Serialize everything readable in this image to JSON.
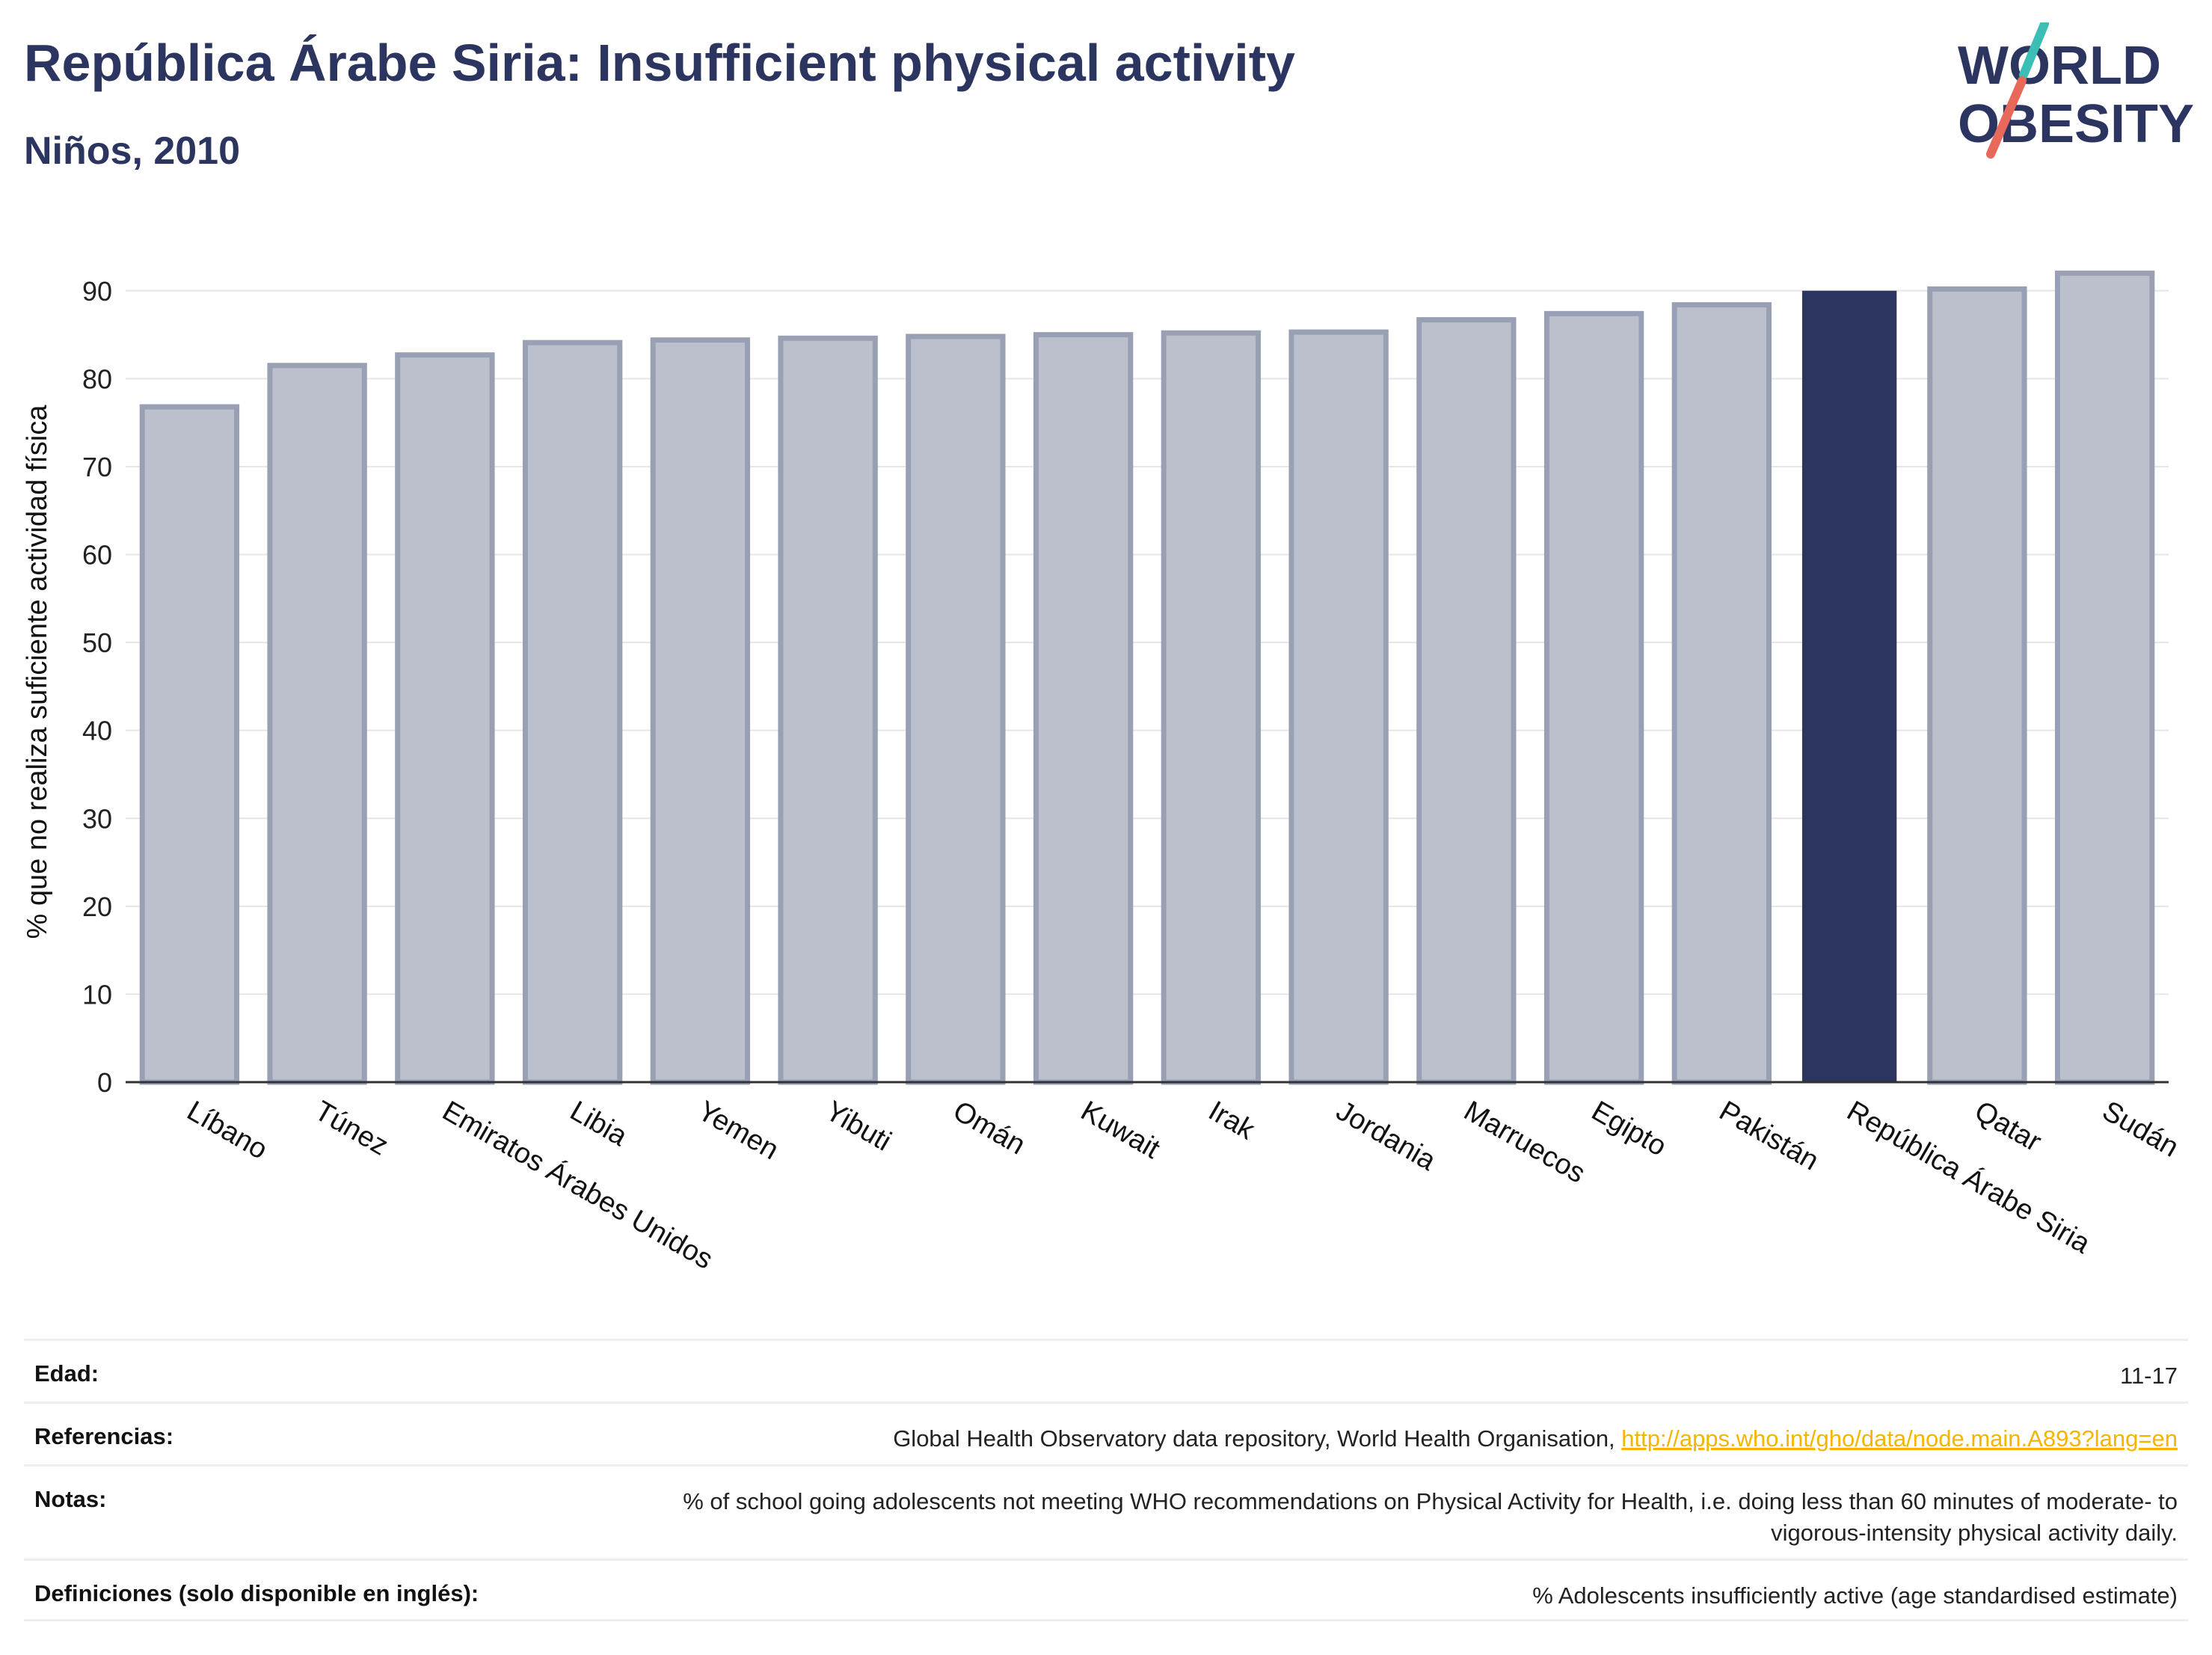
{
  "header": {
    "title": "República Árabe Siria: Insufficient physical activity",
    "subtitle": "Niños, 2010"
  },
  "logo": {
    "line1": "WORLD",
    "line2": "OBESITY",
    "accent_colors": [
      "#3bbfb4",
      "#e8685a"
    ]
  },
  "colors": {
    "bar": "#bcc0cc",
    "bar_border": "#9aa0b4",
    "highlight": "#2b3560",
    "title": "#2b3560"
  },
  "chart_data": {
    "type": "bar",
    "title": "República Árabe Siria: Insufficient physical activity",
    "subtitle": "Niños, 2010",
    "xlabel": "",
    "ylabel": "% que no realiza suficiente actividad física",
    "ylim": [
      0,
      95
    ],
    "yticks": [
      0,
      10,
      20,
      30,
      40,
      50,
      60,
      70,
      80,
      90
    ],
    "grid": true,
    "highlight": "República Árabe Siria",
    "categories": [
      "Líbano",
      "Túnez",
      "Emiratos Árabes Unidos",
      "Libia",
      "Yemen",
      "Yibuti",
      "Omán",
      "Kuwait",
      "Irak",
      "Jordania",
      "Marruecos",
      "Egipto",
      "Pakistán",
      "República Árabe Siria",
      "Qatar",
      "Sudán"
    ],
    "values": [
      76.8,
      81.5,
      82.7,
      84.1,
      84.4,
      84.6,
      84.8,
      85.0,
      85.2,
      85.3,
      86.7,
      87.4,
      88.4,
      90.0,
      90.2,
      92.0
    ]
  },
  "info": {
    "rows": [
      {
        "label": "Edad:",
        "value": "11-17"
      },
      {
        "label": "Referencias:",
        "value": "Global Health Observatory data repository, World Health Organisation, ",
        "link": "http://apps.who.int/gho/data/node.main.A893?lang=en"
      },
      {
        "label": "Notas:",
        "value": "% of school going adolescents not meeting WHO recommendations on Physical Activity for Health, i.e. doing less than 60 minutes of moderate- to vigorous-intensity physical activity daily."
      },
      {
        "label": "Definiciones (solo disponible en inglés):",
        "value": "% Adolescents insufficiently active (age standardised estimate)"
      }
    ]
  }
}
